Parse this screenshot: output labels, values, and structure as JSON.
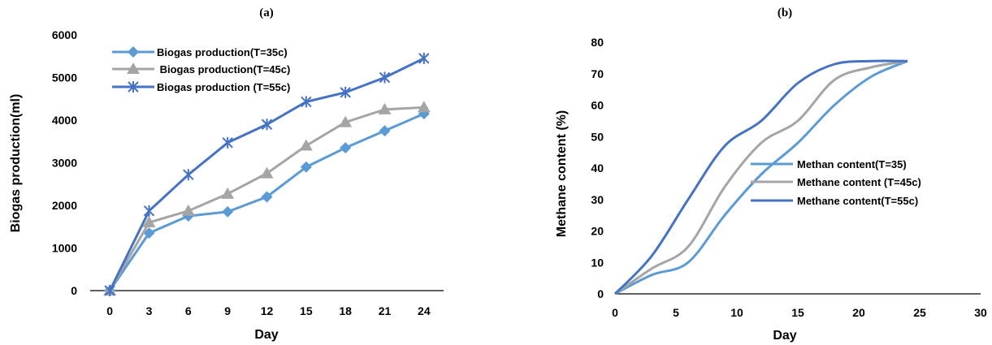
{
  "chart_data": [
    {
      "panel_label": "(a)",
      "type": "line",
      "xlabel": "Day",
      "ylabel": "Biogas production(ml)",
      "x": [
        0,
        3,
        6,
        9,
        12,
        15,
        18,
        21,
        24
      ],
      "xticks": [
        "0",
        "3",
        "6",
        "9",
        "12",
        "15",
        "18",
        "21",
        "24"
      ],
      "ylim": [
        0,
        6000
      ],
      "yticks": [
        0,
        1000,
        2000,
        3000,
        4000,
        5000,
        6000
      ],
      "grid": false,
      "legend_position": "top-left",
      "series": [
        {
          "name": "Biogas production(T=35c)",
          "marker": "diamond",
          "color": "#5B9BD5",
          "values": [
            0,
            1350,
            1750,
            1850,
            2200,
            2900,
            3350,
            3750,
            4150
          ]
        },
        {
          "name": " Biogas production(T=45c)",
          "marker": "triangle",
          "color": "#A5A5A5",
          "values": [
            0,
            1600,
            1870,
            2270,
            2750,
            3400,
            3950,
            4250,
            4300
          ]
        },
        {
          "name": "Biogas production (T=55c)",
          "marker": "asterisk",
          "color": "#4472C4",
          "values": [
            0,
            1870,
            2720,
            3470,
            3900,
            4430,
            4650,
            5000,
            5450
          ]
        }
      ]
    },
    {
      "panel_label": "(b)",
      "type": "line",
      "smooth": true,
      "xlabel": "Day",
      "ylabel": "Methane content (%)",
      "xlim": [
        0,
        30
      ],
      "xticks": [
        0,
        5,
        10,
        15,
        20,
        25,
        30
      ],
      "ylim": [
        0,
        80
      ],
      "yticks": [
        0,
        10,
        20,
        30,
        40,
        50,
        60,
        70,
        80
      ],
      "grid": false,
      "legend_position": "center-right",
      "series": [
        {
          "name": "Methan content(T=35)",
          "color": "#5B9BD5",
          "x": [
            0,
            3,
            6,
            9,
            12,
            15,
            18,
            21,
            24
          ],
          "values": [
            0,
            6,
            10,
            25,
            38,
            48,
            60,
            69,
            74
          ]
        },
        {
          "name": "Methane content (T=45c)",
          "color": "#A5A5A5",
          "x": [
            0,
            3,
            6,
            9,
            12,
            15,
            18,
            21,
            24
          ],
          "values": [
            0,
            8,
            15,
            34,
            48,
            55,
            68,
            72,
            74
          ]
        },
        {
          "name": "Methane content(T=55c)",
          "color": "#4472C4",
          "x": [
            0,
            3,
            6,
            9,
            12,
            15,
            18,
            21,
            24
          ],
          "values": [
            0,
            12,
            30,
            47,
            55,
            67,
            73,
            74,
            74
          ]
        }
      ]
    }
  ]
}
